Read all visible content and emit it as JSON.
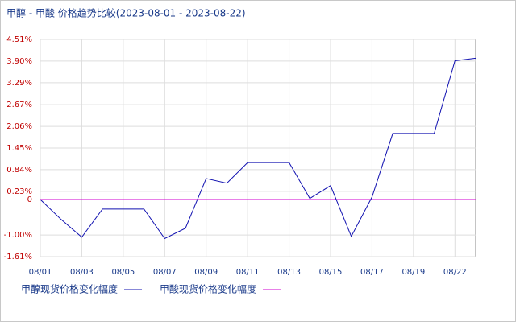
{
  "chart_data": {
    "type": "line",
    "title": "甲醇 - 甲酸 价格趋势比较(2023-08-01 - 2023-08-22)",
    "categories": [
      "08/01",
      null,
      "08/03",
      null,
      "08/05",
      null,
      "08/07",
      null,
      "08/09",
      null,
      "08/11",
      null,
      "08/13",
      null,
      "08/15",
      null,
      "08/17",
      null,
      "08/19",
      null,
      "08/22",
      null
    ],
    "series": [
      {
        "name": "甲醇现货价格变化幅度",
        "color": "#1010b0",
        "values": [
          0.0,
          -0.56,
          -1.06,
          -0.27,
          -0.27,
          -0.27,
          -1.1,
          -0.81,
          0.59,
          0.46,
          1.04,
          1.04,
          1.04,
          0.03,
          0.39,
          -1.04,
          0.07,
          1.86,
          1.86,
          1.86,
          3.91,
          3.98
        ]
      },
      {
        "name": "甲酸现货价格变化幅度",
        "color": "#d000d0",
        "values": [
          0,
          0,
          0,
          0,
          0,
          0,
          0,
          0,
          0,
          0,
          0,
          0,
          0,
          0,
          0,
          0,
          0,
          0,
          0,
          0,
          0,
          0
        ]
      }
    ],
    "ylim": [
      -1.61,
      4.51
    ],
    "yticks": [
      {
        "value": 4.51,
        "label": "4.51%"
      },
      {
        "value": 3.9,
        "label": "3.90%"
      },
      {
        "value": 3.29,
        "label": "3.29%"
      },
      {
        "value": 2.67,
        "label": "2.67%"
      },
      {
        "value": 2.06,
        "label": "2.06%"
      },
      {
        "value": 1.45,
        "label": "1.45%"
      },
      {
        "value": 0.84,
        "label": "0.84%"
      },
      {
        "value": 0.23,
        "label": "0.23%"
      },
      0,
      {
        "value": -1.0,
        "label": "-1.00%"
      },
      {
        "value": -1.61,
        "label": "-1.61%"
      }
    ],
    "grid": true
  }
}
